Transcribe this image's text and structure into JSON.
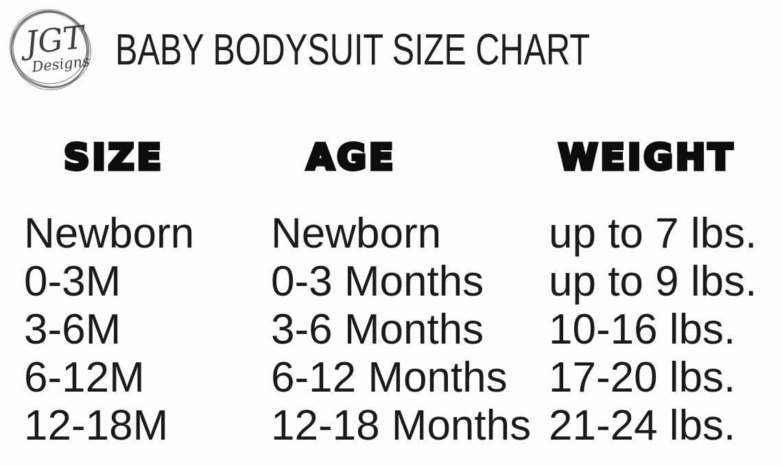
{
  "logo": {
    "initials": "JGT",
    "name": "Designs"
  },
  "header": {
    "title": "BABY BODYSUIT SIZE CHART"
  },
  "table": {
    "columns": [
      {
        "key": "size",
        "label": "SIZE"
      },
      {
        "key": "age",
        "label": "AGE"
      },
      {
        "key": "weight",
        "label": "WEIGHT"
      }
    ],
    "rows": [
      {
        "size": "Newborn",
        "age": "Newborn",
        "weight": "up to 7 lbs."
      },
      {
        "size": "0-3M",
        "age": "0-3 Months",
        "weight": "up to 9 lbs."
      },
      {
        "size": "3-6M",
        "age": "3-6 Months",
        "weight": "10-16 lbs."
      },
      {
        "size": "6-12M",
        "age": "6-12 Months",
        "weight": "17-20 lbs."
      },
      {
        "size": "12-18M",
        "age": "12-18 Months",
        "weight": "21-24 lbs."
      }
    ]
  },
  "colors": {
    "background": "#fdfdfd",
    "text": "#1a1a1a",
    "header_text": "#0c0c0c",
    "logo_stroke": "#5a5a5a"
  }
}
